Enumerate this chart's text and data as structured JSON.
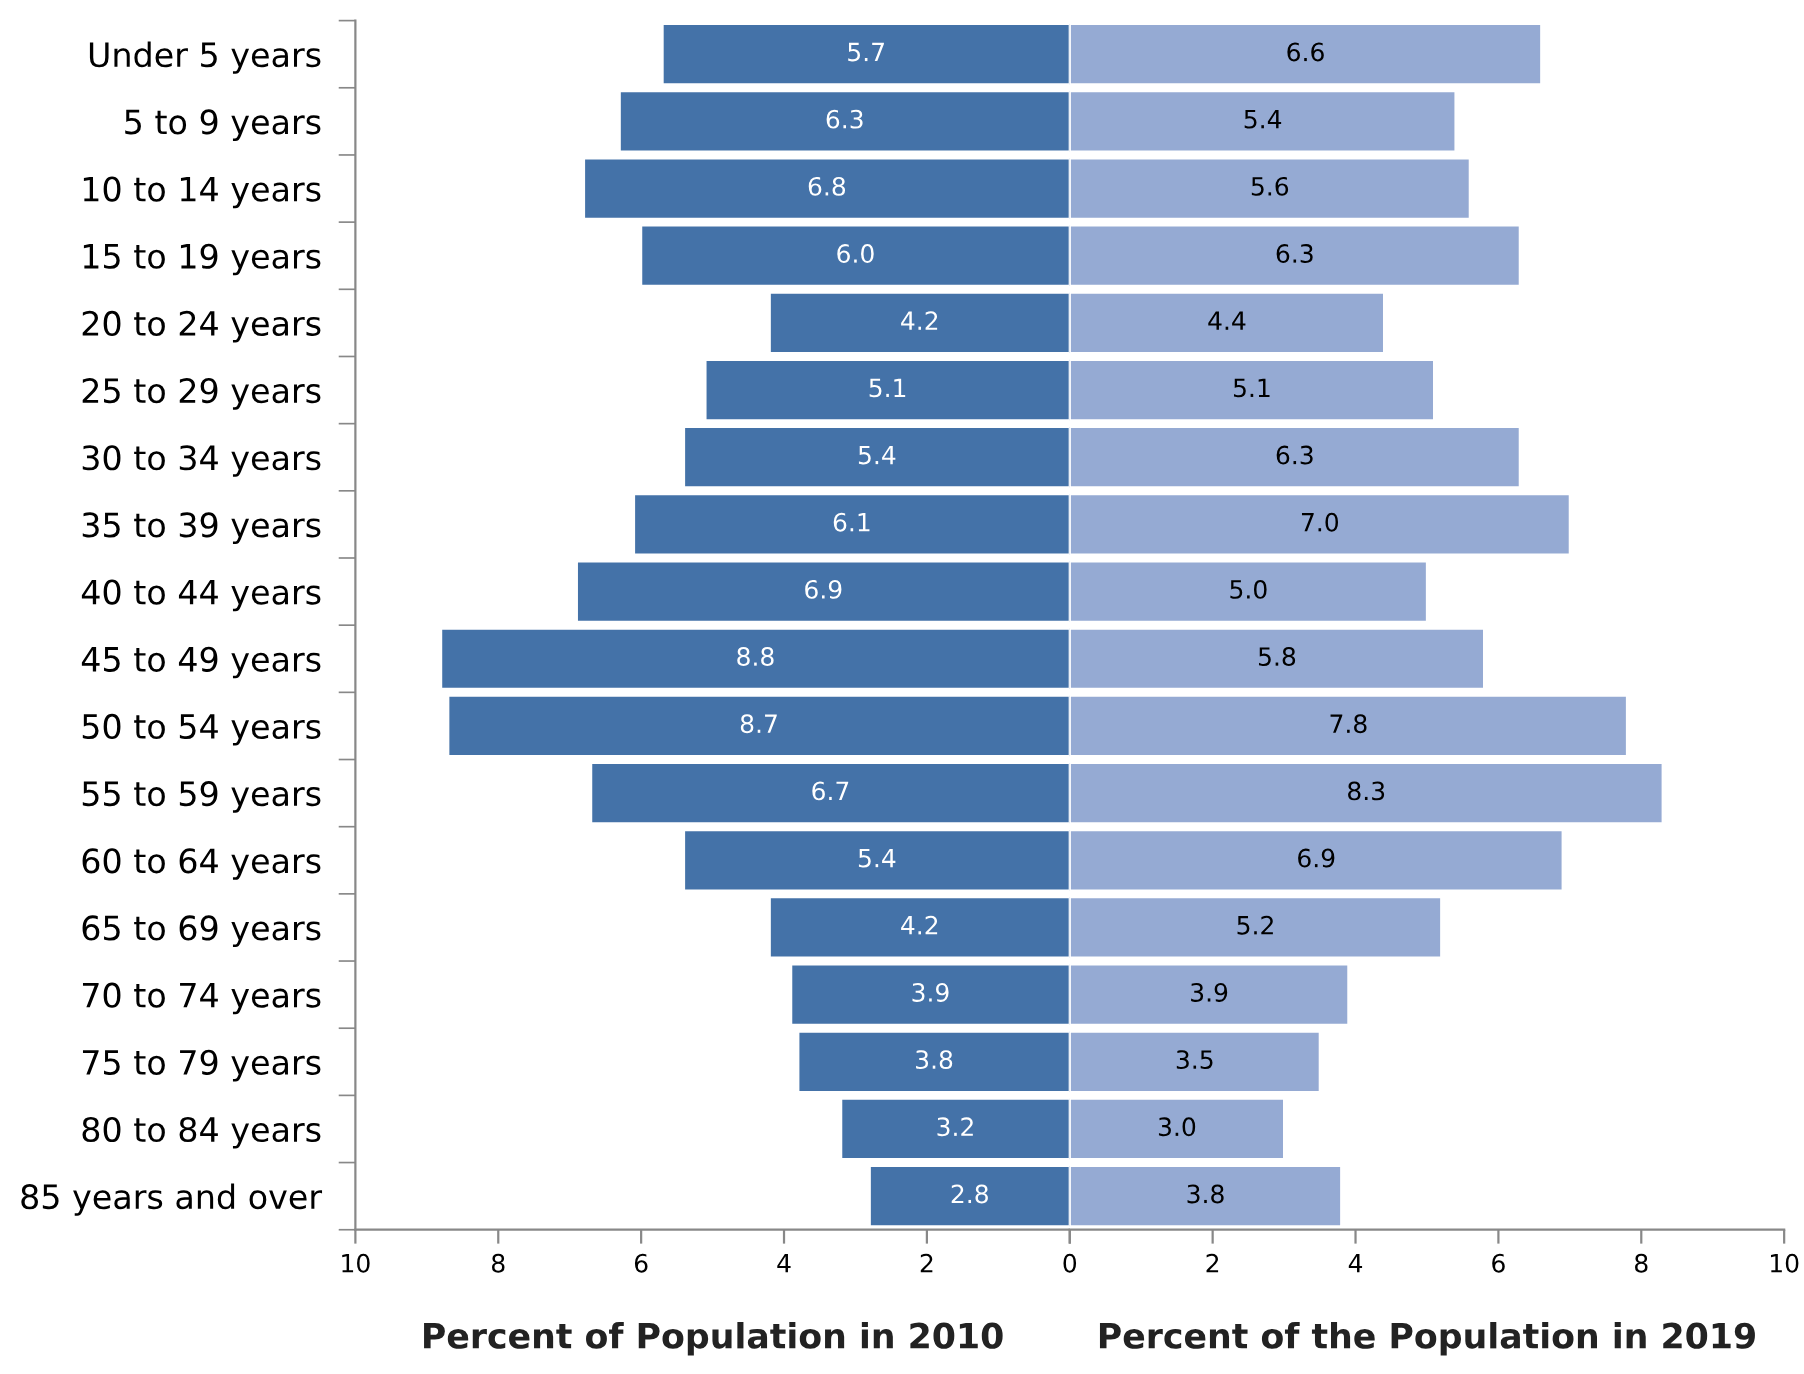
{
  "chart_data": [
    {
      "type": "bar",
      "orientation": "horizontal",
      "xlabel": "Percent of Population in 2010",
      "categories": [
        "Under 5 years",
        "5 to 9 years",
        "10 to 14 years",
        "15 to 19 years",
        "20 to 24 years",
        "25 to 29 years",
        "30 to 34 years",
        "35 to 39 years",
        "40 to 44 years",
        "45 to 49 years",
        "50 to 54 years",
        "55 to 59 years",
        "60 to 64 years",
        "65 to 69 years",
        "70 to 74 years",
        "75 to 79 years",
        "80 to 84 years",
        "85 years and over"
      ],
      "series": [
        {
          "color": "#4472a8",
          "values": [
            5.7,
            6.3,
            6.8,
            6.0,
            4.2,
            5.1,
            5.4,
            6.1,
            6.9,
            8.8,
            8.7,
            6.7,
            5.4,
            4.2,
            3.9,
            3.8,
            3.2,
            2.8
          ],
          "value_labels": [
            "5.7",
            "6.3",
            "6.8",
            "6.0",
            "4.2",
            "5.1",
            "5.4",
            "6.1",
            "6.9",
            "8.8",
            "8.7",
            "6.7",
            "5.4",
            "4.2",
            "3.9",
            "3.8",
            "3.2",
            "2.8"
          ]
        }
      ],
      "xlim": [
        10,
        0
      ],
      "xticks": [
        10,
        8,
        6,
        4,
        2,
        0
      ]
    },
    {
      "type": "bar",
      "orientation": "horizontal",
      "xlabel": "Percent of the Population in 2019",
      "categories": [
        null,
        null,
        null,
        null,
        null,
        null,
        null,
        null,
        null,
        null,
        null,
        null,
        null,
        null,
        null,
        null,
        null,
        null
      ],
      "series": [
        {
          "color": "#95aad3",
          "values": [
            6.6,
            5.4,
            5.6,
            6.3,
            4.4,
            5.1,
            6.3,
            7.0,
            5.0,
            5.8,
            7.8,
            8.3,
            6.9,
            5.2,
            3.9,
            3.5,
            3.0,
            3.8
          ],
          "value_labels": [
            "6.6",
            "5.4",
            "5.6",
            "6.3",
            "4.4",
            "5.1",
            "6.3",
            "7.0",
            "5.0",
            "5.8",
            "7.8",
            "8.3",
            "6.9",
            "5.2",
            "3.9",
            "3.5",
            "3.0",
            "3.8"
          ]
        }
      ],
      "tick_labels": "x",
      "xlim": [
        0,
        10
      ],
      "xticks": [
        {
          "value": 0,
          "label": null
        },
        2,
        4,
        6,
        8,
        10
      ]
    }
  ]
}
